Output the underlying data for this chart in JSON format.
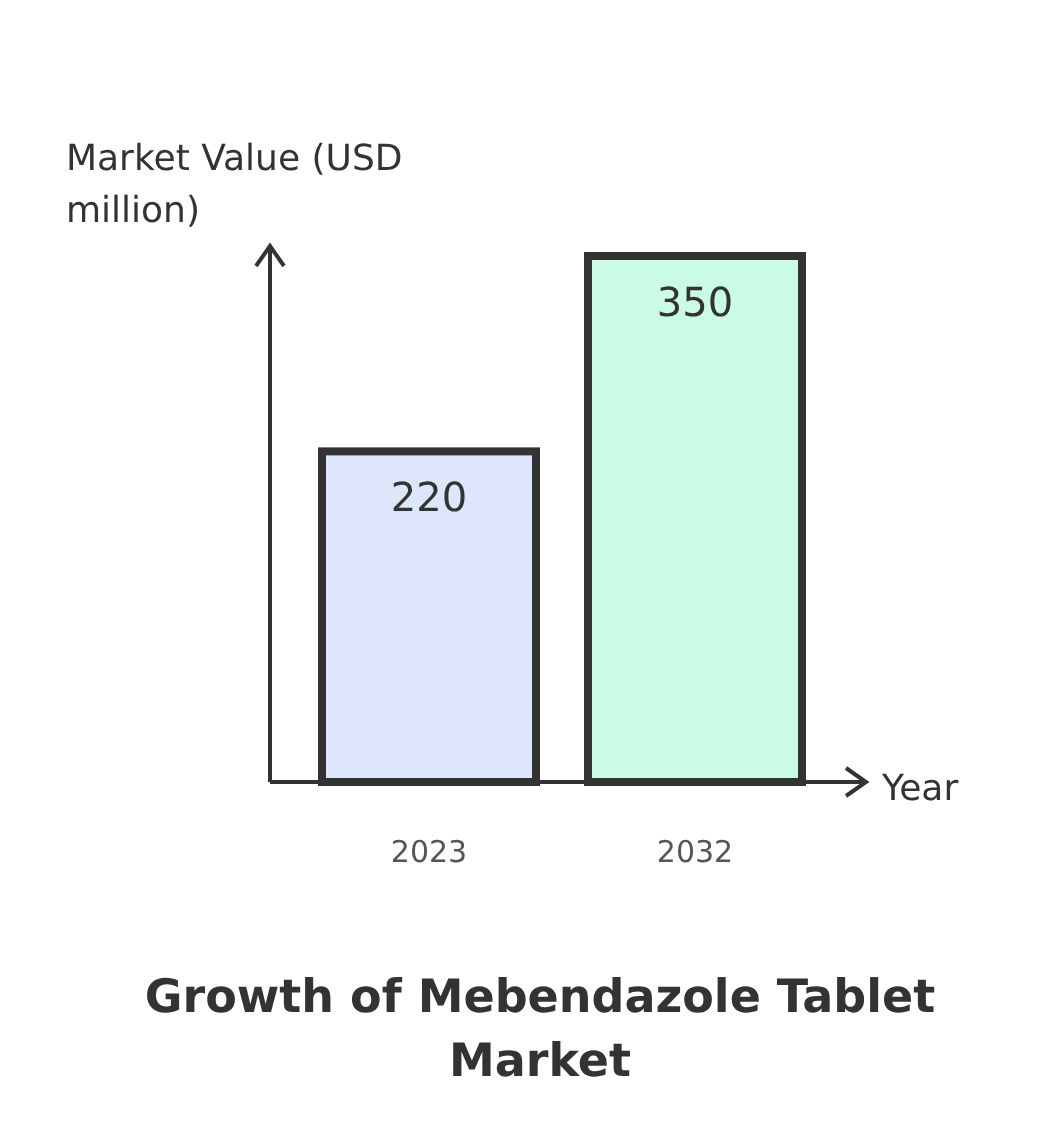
{
  "chart_data": {
    "type": "bar",
    "title": "Growth of Mebendazole Tablet Market",
    "xlabel": "Year",
    "ylabel": "Market Value (USD million)",
    "categories": [
      "2023",
      "2032"
    ],
    "values": [
      220,
      350
    ],
    "colors": [
      "#dde6fb",
      "#c9fbe5"
    ],
    "data_labels": true
  }
}
